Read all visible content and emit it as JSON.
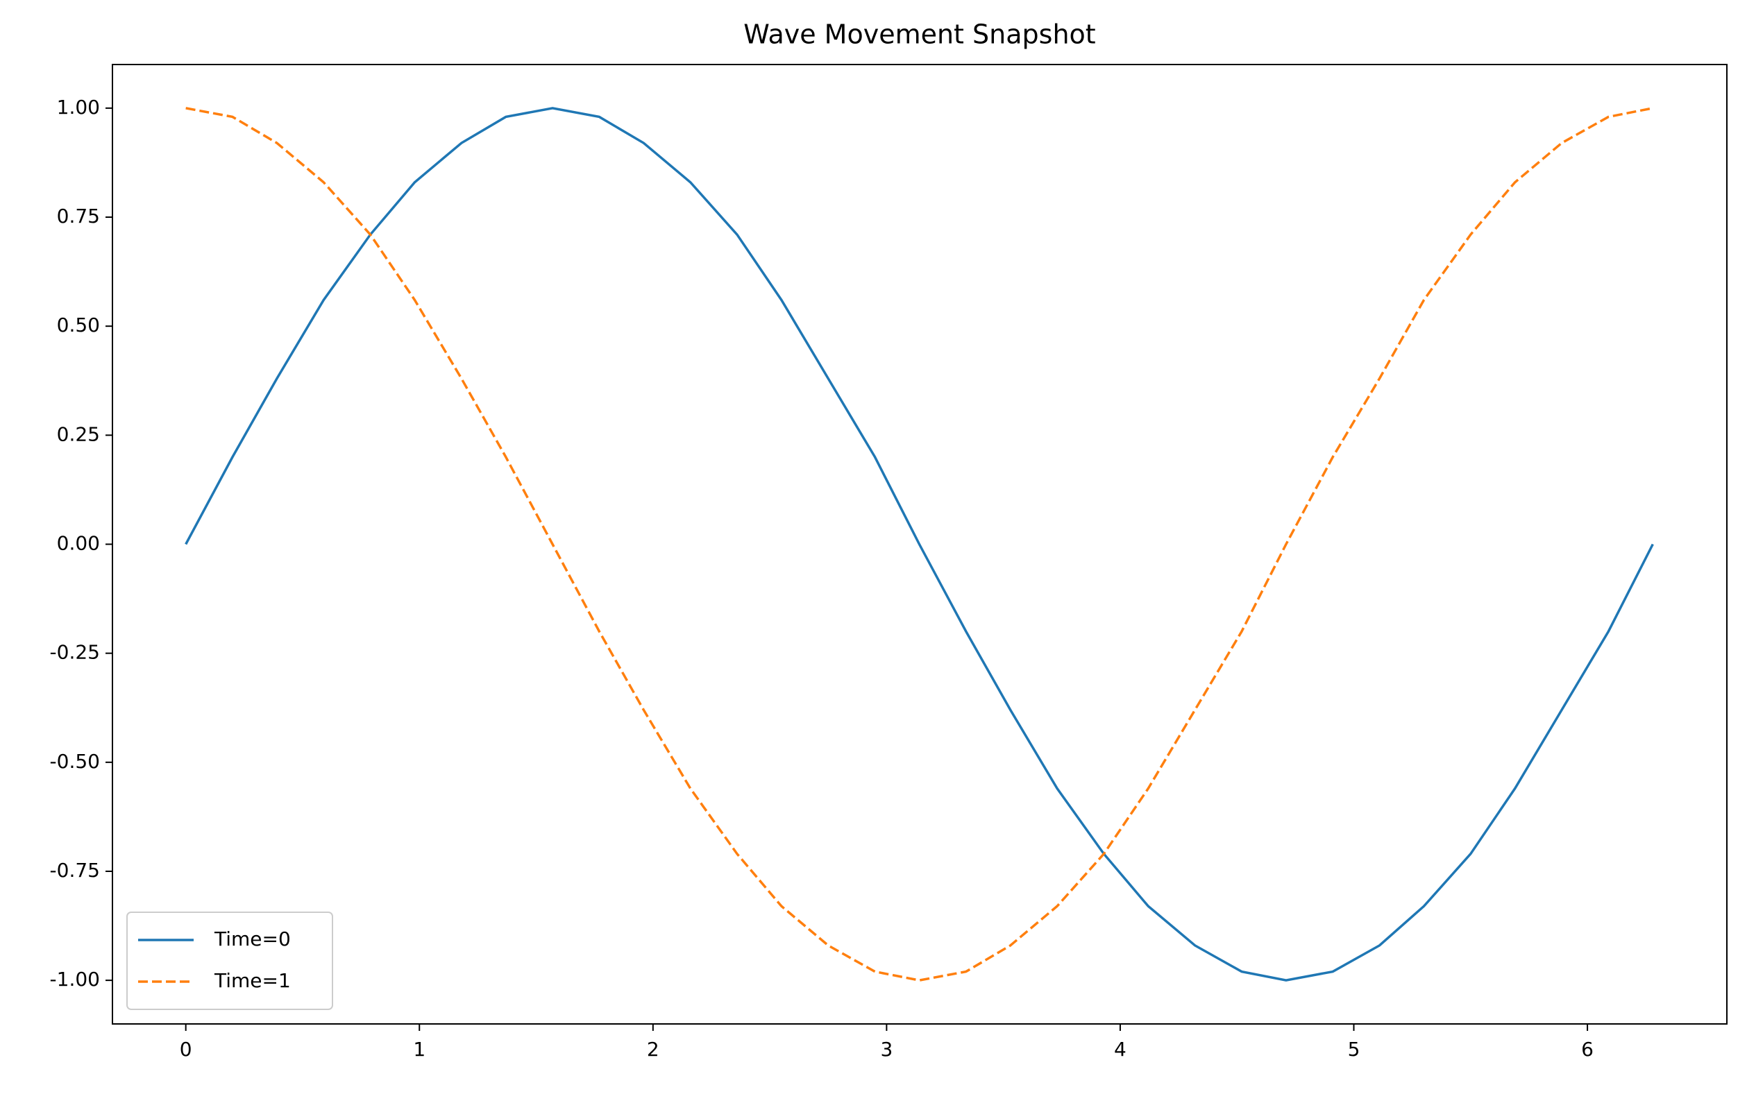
{
  "chart_data": {
    "type": "line",
    "title": "Wave Movement Snapshot",
    "x": [
      0,
      0.2,
      0.39,
      0.59,
      0.79,
      0.98,
      1.18,
      1.37,
      1.57,
      1.77,
      1.96,
      2.16,
      2.36,
      2.55,
      2.75,
      2.95,
      3.14,
      3.34,
      3.53,
      3.73,
      3.93,
      4.12,
      4.32,
      4.52,
      4.71,
      4.91,
      5.11,
      5.3,
      5.5,
      5.69,
      5.89,
      6.09,
      6.28
    ],
    "series": [
      {
        "name": "Time=0",
        "color": "#1f77b4",
        "linestyle": "solid",
        "values": [
          0,
          0.2,
          0.38,
          0.56,
          0.71,
          0.83,
          0.92,
          0.98,
          1,
          0.98,
          0.92,
          0.83,
          0.71,
          0.56,
          0.38,
          0.2,
          0,
          -0.2,
          -0.38,
          -0.56,
          -0.71,
          -0.83,
          -0.92,
          -0.98,
          -1,
          -0.98,
          -0.92,
          -0.83,
          -0.71,
          -0.56,
          -0.38,
          -0.2,
          0
        ]
      },
      {
        "name": "Time=1",
        "color": "#ff7f0e",
        "linestyle": "dashed",
        "values": [
          1,
          0.98,
          0.92,
          0.83,
          0.71,
          0.56,
          0.38,
          0.2,
          0,
          -0.2,
          -0.38,
          -0.56,
          -0.71,
          -0.83,
          -0.92,
          -0.98,
          -1,
          -0.98,
          -0.92,
          -0.83,
          -0.71,
          -0.56,
          -0.38,
          -0.2,
          0,
          0.2,
          0.38,
          0.56,
          0.71,
          0.83,
          0.92,
          0.98,
          1
        ]
      }
    ],
    "xlim": [
      -0.314,
      6.597
    ],
    "ylim": [
      -1.1,
      1.1
    ],
    "xticks": [
      0,
      1,
      2,
      3,
      4,
      5,
      6
    ],
    "yticks": [
      {
        "value": -1,
        "label": "-1.00"
      },
      {
        "value": -0.75,
        "label": "-0.75"
      },
      {
        "value": -0.5,
        "label": "-0.50"
      },
      {
        "value": -0.25,
        "label": "-0.25"
      },
      {
        "value": 0,
        "label": "0.00"
      },
      {
        "value": 0.25,
        "label": "0.25"
      },
      {
        "value": 0.5,
        "label": "0.50"
      },
      {
        "value": 0.75,
        "label": "0.75"
      },
      {
        "value": 1,
        "label": "1.00"
      }
    ],
    "grid": false,
    "legend": "lower left"
  }
}
